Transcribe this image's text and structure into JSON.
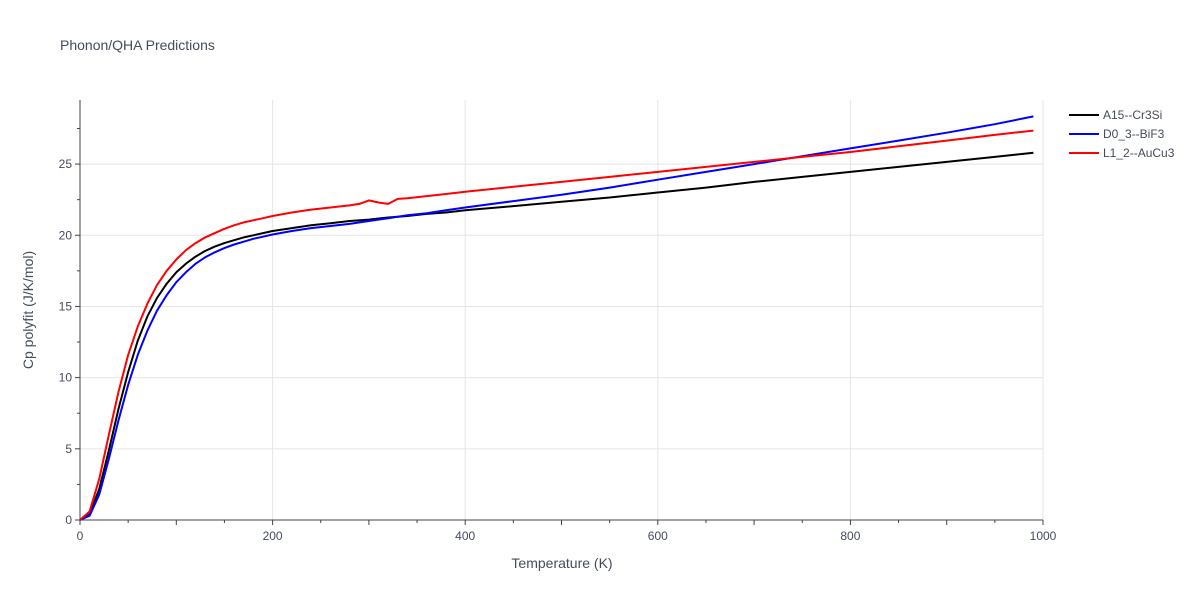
{
  "chart_data": {
    "type": "line",
    "title": "Phonon/QHA Predictions",
    "xlabel": "Temperature (K)",
    "ylabel": "Cp polyfit (J/K/mol)",
    "xlim": [
      0,
      1000
    ],
    "ylim": [
      0,
      29.5
    ],
    "x_ticks": [
      0,
      200,
      400,
      600,
      800,
      1000
    ],
    "y_ticks": [
      0,
      5,
      10,
      15,
      20,
      25
    ],
    "grid": true,
    "legend_position": "top-right",
    "series": [
      {
        "name": "A15--Cr3Si",
        "color": "#000000",
        "x": [
          0,
          10,
          20,
          30,
          40,
          50,
          60,
          70,
          80,
          90,
          100,
          110,
          120,
          130,
          140,
          150,
          160,
          170,
          180,
          190,
          200,
          220,
          240,
          260,
          280,
          300,
          320,
          340,
          360,
          380,
          400,
          450,
          500,
          550,
          600,
          650,
          700,
          750,
          800,
          850,
          900,
          950,
          990
        ],
        "y": [
          0,
          0.4,
          2.2,
          4.9,
          7.8,
          10.4,
          12.6,
          14.3,
          15.6,
          16.6,
          17.4,
          18.0,
          18.5,
          18.9,
          19.2,
          19.45,
          19.65,
          19.85,
          20.0,
          20.15,
          20.3,
          20.5,
          20.7,
          20.85,
          21.0,
          21.1,
          21.25,
          21.35,
          21.5,
          21.6,
          21.75,
          22.05,
          22.35,
          22.65,
          23.0,
          23.35,
          23.75,
          24.1,
          24.45,
          24.8,
          25.15,
          25.5,
          25.8
        ]
      },
      {
        "name": "D0_3--BiF3",
        "color": "#0000ff",
        "x": [
          0,
          10,
          20,
          30,
          40,
          50,
          60,
          70,
          80,
          90,
          100,
          110,
          120,
          130,
          140,
          150,
          160,
          170,
          180,
          190,
          200,
          220,
          240,
          260,
          280,
          300,
          320,
          340,
          360,
          380,
          400,
          450,
          500,
          550,
          600,
          650,
          700,
          750,
          800,
          850,
          900,
          950,
          990
        ],
        "y": [
          0,
          0.3,
          1.8,
          4.3,
          7.0,
          9.5,
          11.6,
          13.3,
          14.7,
          15.8,
          16.7,
          17.4,
          18.0,
          18.45,
          18.8,
          19.1,
          19.35,
          19.55,
          19.75,
          19.9,
          20.05,
          20.3,
          20.5,
          20.65,
          20.8,
          21.0,
          21.2,
          21.4,
          21.55,
          21.75,
          21.95,
          22.4,
          22.85,
          23.35,
          23.9,
          24.45,
          25.0,
          25.55,
          26.1,
          26.65,
          27.2,
          27.8,
          28.35
        ]
      },
      {
        "name": "L1_2--AuCu3",
        "color": "#ff0000",
        "x": [
          0,
          10,
          20,
          30,
          40,
          50,
          60,
          70,
          80,
          90,
          100,
          110,
          120,
          130,
          140,
          150,
          160,
          170,
          180,
          190,
          200,
          220,
          240,
          260,
          280,
          290,
          300,
          310,
          320,
          330,
          340,
          360,
          380,
          400,
          450,
          500,
          550,
          600,
          650,
          700,
          750,
          800,
          850,
          900,
          950,
          990
        ],
        "y": [
          0,
          0.6,
          2.9,
          6.0,
          9.0,
          11.6,
          13.6,
          15.2,
          16.5,
          17.5,
          18.3,
          18.95,
          19.45,
          19.85,
          20.15,
          20.45,
          20.7,
          20.9,
          21.05,
          21.2,
          21.35,
          21.6,
          21.8,
          21.95,
          22.1,
          22.2,
          22.45,
          22.3,
          22.2,
          22.55,
          22.6,
          22.75,
          22.9,
          23.05,
          23.4,
          23.75,
          24.1,
          24.45,
          24.8,
          25.15,
          25.5,
          25.85,
          26.25,
          26.65,
          27.05,
          27.35
        ]
      }
    ]
  }
}
